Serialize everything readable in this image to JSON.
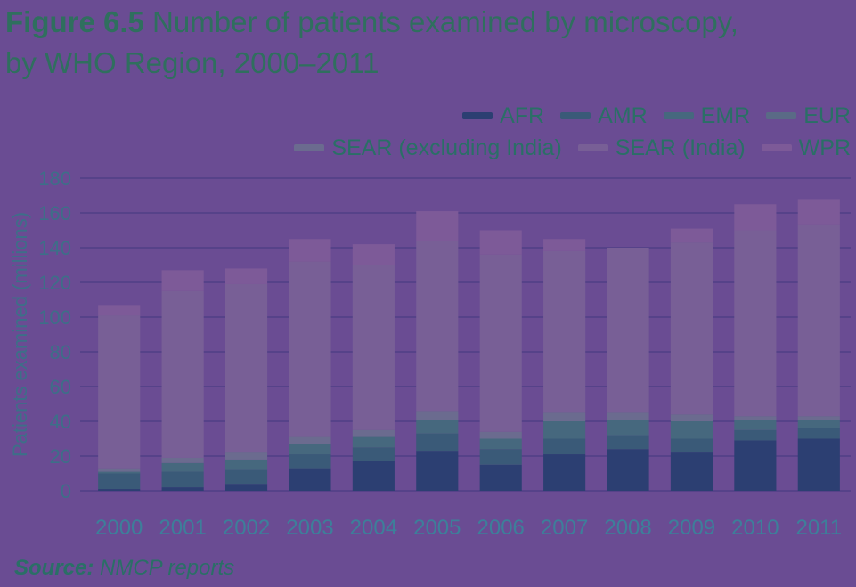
{
  "figure_label": "Figure 6.5",
  "title_rest": " Number of patients examined by microscopy,",
  "title_line2": "by WHO Region, 2000–2011",
  "source_label": "Source:",
  "source_text": " NMCP reports",
  "chart_data": {
    "type": "bar",
    "stacked": true,
    "ylabel": "Patients examined (millions)",
    "xlabel": "",
    "ylim": [
      0,
      180
    ],
    "yticks": [
      0,
      20,
      40,
      60,
      80,
      100,
      120,
      140,
      160,
      180
    ],
    "categories": [
      "2000",
      "2001",
      "2002",
      "2003",
      "2004",
      "2005",
      "2006",
      "2007",
      "2008",
      "2009",
      "2010",
      "2011"
    ],
    "legend_placement": "top-right",
    "series": [
      {
        "name": "AFR",
        "color": "#2c3f72",
        "values": [
          1,
          2,
          4,
          13,
          17,
          23,
          15,
          21,
          24,
          22,
          29,
          30
        ]
      },
      {
        "name": "AMR",
        "color": "#3a5a78",
        "values": [
          9,
          9,
          8,
          8,
          8,
          10,
          9,
          9,
          8,
          8,
          6,
          6
        ]
      },
      {
        "name": "EMR",
        "color": "#46687e",
        "values": [
          1,
          5,
          6,
          6,
          6,
          8,
          6,
          10,
          9,
          10,
          6,
          5
        ]
      },
      {
        "name": "EUR",
        "color": "#5a6a86",
        "values": [
          0,
          0,
          0,
          0,
          0,
          0,
          0,
          0,
          0,
          0,
          0,
          0
        ]
      },
      {
        "name": "SEAR (excluding India)",
        "color": "#6b6b8f",
        "values": [
          2,
          3,
          4,
          4,
          4,
          5,
          4,
          5,
          4,
          4,
          2,
          2
        ]
      },
      {
        "name": "SEAR (India)",
        "color": "#785f96",
        "values": [
          88,
          96,
          97,
          101,
          95,
          98,
          102,
          93,
          95,
          99,
          107,
          110
        ]
      },
      {
        "name": "WPR",
        "color": "#7d5a98",
        "values": [
          6,
          12,
          9,
          13,
          12,
          17,
          14,
          7,
          0,
          8,
          15,
          15
        ]
      }
    ]
  }
}
